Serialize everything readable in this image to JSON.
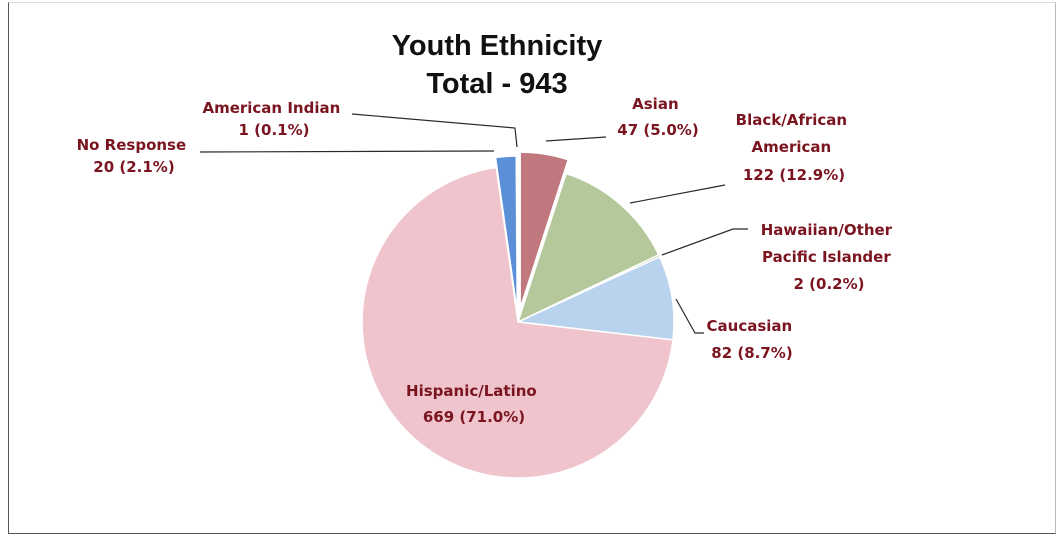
{
  "chart_data": {
    "type": "pie",
    "title": [
      "Youth Ethnicity",
      "Total - 943"
    ],
    "total": 943,
    "slices": [
      {
        "name": "Asian",
        "value": 47,
        "pct": "5.0%",
        "color": "#c0777d"
      },
      {
        "name": "Black/African American",
        "value": 122,
        "pct": "12.9%",
        "color": "#b4c89c"
      },
      {
        "name": "Hawaiian/Other Pacific Islander",
        "value": 2,
        "pct": "0.2%",
        "color": "#9fb87e"
      },
      {
        "name": "Caucasian",
        "value": 82,
        "pct": "8.7%",
        "color": "#b9d3ef"
      },
      {
        "name": "Hispanic/Latino",
        "value": 669,
        "pct": "71.0%",
        "color": "#efc4cd"
      },
      {
        "name": "No Response",
        "value": 20,
        "pct": "2.1%",
        "color": "#5b8fd6"
      },
      {
        "name": "American Indian",
        "value": 1,
        "pct": "0.1%",
        "color": "#3f66b8"
      }
    ],
    "labels": {
      "asian": [
        "Asian",
        "47 (5.0%)"
      ],
      "black": [
        "Black/African",
        "American",
        "122 (12.9%)"
      ],
      "hawaiian": [
        "Hawaiian/Other",
        "Pacific Islander",
        "2 (0.2%)"
      ],
      "caucasian": [
        "Caucasian",
        "82 (8.7%)"
      ],
      "hispanic": [
        "Hispanic/Latino",
        "669 (71.0%)"
      ],
      "noresp": [
        "No Response",
        "20 (2.1%)"
      ],
      "amind": [
        "American Indian",
        "1 (0.1%)"
      ]
    }
  }
}
